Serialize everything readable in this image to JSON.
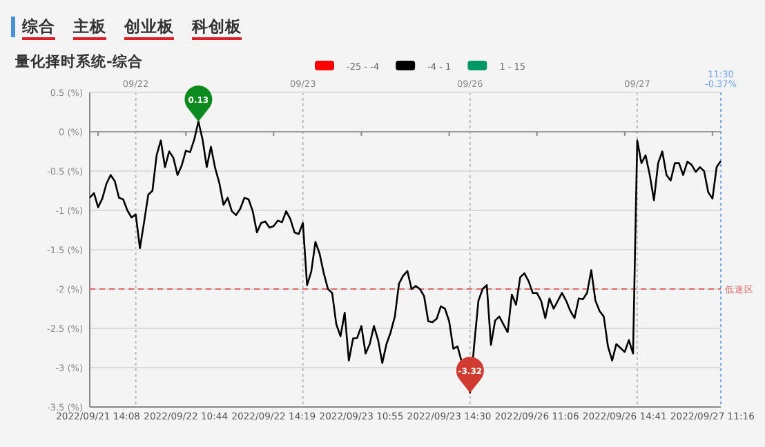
{
  "chart_data": {
    "type": "line",
    "title": "量化择时系统-综合",
    "annotations": [
      "综合",
      "主板",
      "创业板",
      "科创板",
      "09/22",
      "09/23",
      "09/26",
      "09/27",
      "11:30 -0.37%",
      {
        "text": "0.13",
        "y": 0.13
      },
      {
        "text": "-3.32",
        "y": -3.32
      }
    ],
    "categories": [
      null,
      null,
      "2022/09/21 14:08",
      null,
      null,
      null,
      null,
      null,
      null,
      null,
      null,
      null,
      null,
      null,
      null,
      null,
      null,
      null,
      null,
      null,
      null,
      null,
      null,
      "2022/09/22 10:44",
      null,
      null,
      null,
      null,
      null,
      null,
      null,
      null,
      null,
      null,
      null,
      null,
      null,
      null,
      null,
      null,
      null,
      null,
      null,
      null,
      "2022/09/22 14:19",
      null,
      null,
      null,
      null,
      null,
      null,
      null,
      null,
      null,
      null,
      null,
      null,
      null,
      null,
      null,
      null,
      null,
      null,
      null,
      null,
      "2022/09/23 10:55",
      null,
      null,
      null,
      null,
      null,
      null,
      null,
      null,
      null,
      null,
      null,
      null,
      null,
      null,
      null,
      null,
      null,
      null,
      null,
      null,
      "2022/09/23 14:30",
      null,
      null,
      null,
      null,
      null,
      null,
      null,
      null,
      null,
      null,
      null,
      null,
      null,
      null,
      null,
      null,
      null,
      null,
      null,
      null,
      "2022/09/26 11:06",
      null,
      null,
      null,
      null,
      null,
      null,
      null,
      null,
      null,
      null,
      null,
      null,
      null,
      null,
      null,
      null,
      null,
      null,
      null,
      null,
      "2022/09/26 14:41",
      null,
      null,
      null,
      null,
      null,
      null,
      null,
      null,
      null,
      null,
      null,
      null,
      null,
      null,
      null,
      null,
      null,
      null,
      null,
      null,
      "2022/09/27 11:16",
      null,
      null
    ],
    "series": [
      {
        "name": "-25 - -4",
        "color": "#ff0000",
        "values": [
          null,
          null,
          null,
          null,
          null,
          null,
          null,
          null,
          null,
          null,
          null,
          null,
          null,
          null,
          null,
          null,
          null,
          null,
          null,
          null,
          null,
          null,
          null,
          null,
          null,
          null,
          null,
          null,
          null,
          null,
          null,
          null,
          null,
          null,
          null,
          null,
          null,
          null,
          null,
          null,
          null,
          null,
          null,
          null,
          null,
          null,
          null,
          null,
          null,
          null,
          null,
          null,
          null,
          null,
          null,
          null,
          null,
          null,
          null,
          null,
          null,
          null,
          null,
          null,
          null,
          null,
          null,
          null,
          null,
          null,
          null,
          null,
          null,
          null,
          null,
          null,
          null,
          null,
          null,
          null,
          null,
          null,
          null,
          null,
          null,
          null,
          null,
          null,
          null,
          null,
          null,
          null,
          null,
          null,
          null,
          null,
          null,
          null,
          null,
          null,
          null,
          null,
          null,
          null,
          null,
          null,
          null,
          null,
          null,
          null,
          null,
          null,
          null,
          null,
          null,
          null,
          null,
          null,
          null,
          null,
          null,
          null,
          null,
          null,
          null,
          null,
          null,
          null,
          null,
          null,
          null,
          null,
          null,
          null,
          null,
          null,
          null,
          null,
          null,
          null,
          null,
          null,
          null,
          null,
          null,
          null,
          null,
          null,
          null,
          null,
          null,
          null
        ]
      },
      {
        "name": "-4 - 1",
        "color": "#000000",
        "values": [
          -0.84,
          -0.78,
          -0.96,
          -0.85,
          -0.66,
          -0.55,
          -0.63,
          -0.84,
          -0.86,
          -1.0,
          -1.09,
          -1.05,
          -1.48,
          -1.15,
          -0.8,
          -0.75,
          -0.3,
          -0.11,
          -0.45,
          -0.25,
          -0.33,
          -0.55,
          -0.43,
          -0.24,
          -0.26,
          -0.1,
          0.13,
          -0.1,
          -0.45,
          -0.19,
          -0.46,
          -0.65,
          -0.93,
          -0.84,
          -1.01,
          -1.06,
          -0.98,
          -0.84,
          -0.86,
          -1.01,
          -1.28,
          -1.16,
          -1.14,
          -1.22,
          -1.2,
          -1.13,
          -1.15,
          -1.01,
          -1.11,
          -1.28,
          -1.3,
          -1.16,
          -1.95,
          -1.78,
          -1.4,
          -1.55,
          -1.8,
          -2.0,
          -2.05,
          -2.45,
          -2.6,
          -2.3,
          -2.91,
          -2.63,
          -2.62,
          -2.47,
          -2.82,
          -2.7,
          -2.47,
          -2.65,
          -2.94,
          -2.7,
          -2.55,
          -2.35,
          -1.93,
          -1.83,
          -1.77,
          -2.0,
          -1.96,
          -2.0,
          -2.09,
          -2.41,
          -2.42,
          -2.38,
          -2.22,
          -2.25,
          -2.41,
          -2.76,
          -2.73,
          null,
          null,
          -3.32,
          -2.7,
          -2.15,
          -2.0,
          -1.95,
          -2.71,
          -2.4,
          -2.35,
          -2.45,
          -2.55,
          -2.07,
          -2.2,
          -1.85,
          -1.8,
          -1.9,
          -2.05,
          -2.05,
          -2.15,
          -2.37,
          -2.12,
          -2.25,
          -2.15,
          -2.05,
          -2.15,
          -2.28,
          -2.37,
          -2.12,
          -2.13,
          -2.05,
          -1.76,
          -2.15,
          -2.28,
          -2.35,
          -2.73,
          -2.91,
          -2.7,
          -2.75,
          -2.8,
          -2.65,
          -2.82,
          -0.11,
          -0.4,
          -0.3,
          -0.55,
          -0.87,
          -0.4,
          -0.25,
          -0.55,
          -0.62,
          -0.4,
          -0.4,
          -0.55,
          -0.38,
          -0.42,
          -0.51,
          -0.45,
          -0.5,
          -0.77,
          -0.85,
          -0.45,
          -0.37
        ]
      },
      {
        "name": "1 - 15",
        "color": "#009966",
        "values": [
          null,
          null,
          null,
          null,
          null,
          null,
          null,
          null,
          null,
          null,
          null,
          null,
          null,
          null,
          null,
          null,
          null,
          null,
          null,
          null,
          null,
          null,
          null,
          null,
          null,
          null,
          null,
          null,
          null,
          null,
          null,
          null,
          null,
          null,
          null,
          null,
          null,
          null,
          null,
          null,
          null,
          null,
          null,
          null,
          null,
          null,
          null,
          null,
          null,
          null,
          null,
          null,
          null,
          null,
          null,
          null,
          null,
          null,
          null,
          null,
          null,
          null,
          null,
          null,
          null,
          null,
          null,
          null,
          null,
          null,
          null,
          null,
          null,
          null,
          null,
          null,
          null,
          null,
          null,
          null,
          null,
          null,
          null,
          null,
          null,
          null,
          null,
          null,
          null,
          null,
          null,
          null,
          null,
          null,
          null,
          null,
          null,
          null,
          null,
          null,
          null,
          null,
          null,
          null,
          null,
          null,
          null,
          null,
          null,
          null,
          null,
          null,
          null,
          null,
          null,
          null,
          null,
          null,
          null,
          null,
          null,
          null,
          null,
          null,
          null,
          null,
          null,
          null,
          null,
          null,
          null,
          null,
          null,
          null,
          null,
          null,
          null,
          null,
          null,
          null,
          null,
          null,
          null,
          null,
          null,
          null,
          null,
          null,
          null,
          null,
          null,
          null
        ]
      }
    ],
    "ylim": [
      -3.5,
      0.5
    ],
    "yticks": [
      {
        "value": 0.5,
        "label": "0.5 (%)"
      },
      {
        "value": 0,
        "label": "0 (%)"
      },
      {
        "value": -0.5,
        "label": "-0.5 (%)"
      },
      {
        "value": -1,
        "label": "-1 (%)"
      },
      {
        "value": -1.5,
        "label": "-1.5 (%)"
      },
      {
        "value": -2,
        "label": "-2 (%)"
      },
      {
        "value": -2.5,
        "label": "-2.5 (%)"
      },
      {
        "value": -3,
        "label": "-3 (%)"
      },
      {
        "value": -3.5,
        "label": "-3.5 (%)"
      }
    ],
    "ref_lines": [
      {
        "axis": "y",
        "value": -2,
        "label": "低迷区",
        "color": "#e06666",
        "line_style": "dashed"
      }
    ],
    "grid": "y",
    "legend": "top right",
    "marker": "none",
    "line_style": "solid"
  }
}
